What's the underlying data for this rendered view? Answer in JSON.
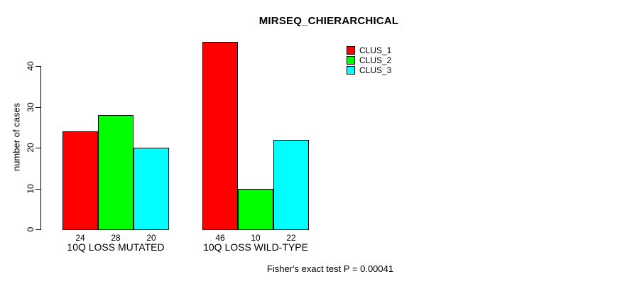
{
  "title": "MIRSEQ_CHIERARCHICAL",
  "ylabel": "number of cases",
  "footer": "Fisher's exact test P = 0.00041",
  "chart_data": {
    "type": "bar",
    "title": "MIRSEQ_CHIERARCHICAL",
    "xlabel": "",
    "ylabel": "number of cases",
    "categories": [
      "10Q LOSS MUTATED",
      "10Q LOSS WILD-TYPE"
    ],
    "series": [
      {
        "name": "CLUS_1",
        "color": "#ff0000",
        "values": [
          24,
          46
        ]
      },
      {
        "name": "CLUS_2",
        "color": "#00ff00",
        "values": [
          28,
          10
        ]
      },
      {
        "name": "CLUS_3",
        "color": "#00ffff",
        "values": [
          20,
          22
        ]
      }
    ],
    "yticks": [
      0,
      10,
      20,
      30,
      40
    ],
    "ylim": [
      0,
      46
    ],
    "grid": false,
    "legend_position": "top-right",
    "bar_border_color": "#000000",
    "annotation": "Fisher's exact test P = 0.00041"
  }
}
